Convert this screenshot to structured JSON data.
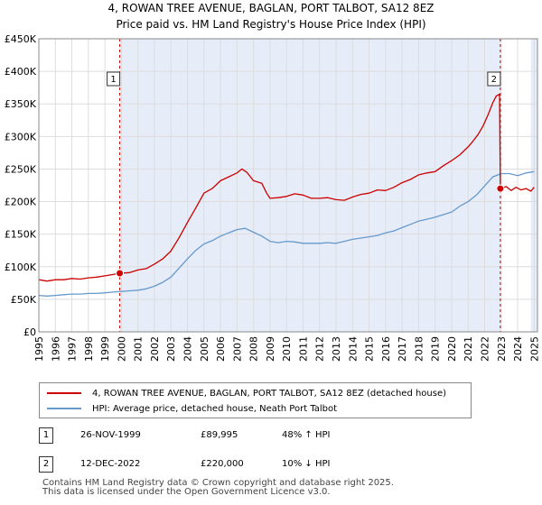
{
  "title": {
    "line1": "4, ROWAN TREE AVENUE, BAGLAN, PORT TALBOT, SA12 8EZ",
    "line2": "Price paid vs. HM Land Registry's House Price Index (HPI)"
  },
  "colors": {
    "property": "#cc0000",
    "hpi": "#6699cc",
    "shade": "#e6ecf8",
    "grid": "#dddddd",
    "marker_line": "#cc0000"
  },
  "chart_data": {
    "type": "line",
    "title": "Price paid vs. HM Land Registry's House Price Index (HPI)",
    "xlabel": "",
    "ylabel": "",
    "xlim": [
      1995.0,
      2025.2
    ],
    "ylim": [
      0,
      450000
    ],
    "grid": true,
    "y_ticks": [
      {
        "value": 0,
        "label": "£0"
      },
      {
        "value": 50000,
        "label": "£50K"
      },
      {
        "value": 100000,
        "label": "£100K"
      },
      {
        "value": 150000,
        "label": "£150K"
      },
      {
        "value": 200000,
        "label": "£200K"
      },
      {
        "value": 250000,
        "label": "£250K"
      },
      {
        "value": 300000,
        "label": "£300K"
      },
      {
        "value": 350000,
        "label": "£350K"
      },
      {
        "value": 400000,
        "label": "£400K"
      },
      {
        "value": 450000,
        "label": "£450K"
      }
    ],
    "x_ticks": [
      "1995",
      "1996",
      "1997",
      "1998",
      "1999",
      "2000",
      "2001",
      "2002",
      "2003",
      "2004",
      "2005",
      "2006",
      "2007",
      "2008",
      "2009",
      "2010",
      "2011",
      "2012",
      "2013",
      "2014",
      "2015",
      "2016",
      "2017",
      "2018",
      "2019",
      "2020",
      "2021",
      "2022",
      "2023",
      "2024",
      "2025"
    ],
    "series": [
      {
        "name": "4, ROWAN TREE AVENUE, BAGLAN, PORT TALBOT, SA12 8EZ (detached house)",
        "color": "#cc0000",
        "x": [
          1995.0,
          1995.5,
          1996.0,
          1996.5,
          1997.0,
          1997.5,
          1998.0,
          1998.5,
          1999.0,
          1999.5,
          1999.9,
          2000.5,
          2001.0,
          2001.5,
          2002.0,
          2002.5,
          2003.0,
          2003.5,
          2004.0,
          2004.5,
          2005.0,
          2005.5,
          2006.0,
          2006.5,
          2007.0,
          2007.3,
          2007.6,
          2008.0,
          2008.5,
          2008.8,
          2009.0,
          2009.5,
          2010.0,
          2010.5,
          2011.0,
          2011.5,
          2012.0,
          2012.5,
          2013.0,
          2013.5,
          2014.0,
          2014.5,
          2015.0,
          2015.5,
          2016.0,
          2016.5,
          2017.0,
          2017.5,
          2018.0,
          2018.5,
          2019.0,
          2019.5,
          2020.0,
          2020.5,
          2021.0,
          2021.3,
          2021.6,
          2021.9,
          2022.2,
          2022.5,
          2022.7,
          2022.9,
          2022.95,
          2023.3,
          2023.6,
          2023.9,
          2024.2,
          2024.5,
          2024.8,
          2025.0
        ],
        "values": [
          80000,
          78000,
          80000,
          80000,
          82000,
          81000,
          83000,
          84000,
          86000,
          88000,
          89995,
          91000,
          95000,
          97000,
          104000,
          112000,
          124000,
          145000,
          168000,
          190000,
          213000,
          220000,
          232000,
          238000,
          244000,
          250000,
          245000,
          232000,
          228000,
          213000,
          205000,
          206000,
          208000,
          212000,
          210000,
          205000,
          205000,
          206000,
          203000,
          202000,
          207000,
          211000,
          213000,
          218000,
          217000,
          222000,
          229000,
          234000,
          241000,
          244000,
          246000,
          255000,
          263000,
          272000,
          284000,
          293000,
          303000,
          316000,
          333000,
          352000,
          362000,
          365000,
          220000,
          223000,
          217000,
          222000,
          218000,
          220000,
          216000,
          222000
        ]
      },
      {
        "name": "HPI: Average price, detached house, Neath Port Talbot",
        "color": "#6699cc",
        "x": [
          1995.0,
          1995.5,
          1996.0,
          1996.5,
          1997.0,
          1997.5,
          1998.0,
          1998.5,
          1999.0,
          1999.5,
          2000.0,
          2000.5,
          2001.0,
          2001.5,
          2002.0,
          2002.5,
          2003.0,
          2003.5,
          2004.0,
          2004.5,
          2005.0,
          2005.5,
          2006.0,
          2006.5,
          2007.0,
          2007.5,
          2008.0,
          2008.5,
          2009.0,
          2009.5,
          2010.0,
          2010.5,
          2011.0,
          2011.5,
          2012.0,
          2012.5,
          2013.0,
          2013.5,
          2014.0,
          2014.5,
          2015.0,
          2015.5,
          2016.0,
          2016.5,
          2017.0,
          2017.5,
          2018.0,
          2018.5,
          2019.0,
          2019.5,
          2020.0,
          2020.5,
          2021.0,
          2021.5,
          2022.0,
          2022.5,
          2023.0,
          2023.5,
          2024.0,
          2024.5,
          2025.0
        ],
        "values": [
          56000,
          55000,
          56000,
          57000,
          58000,
          58000,
          59000,
          59000,
          60000,
          61000,
          62000,
          63000,
          64000,
          66000,
          70000,
          76000,
          84000,
          98000,
          112000,
          125000,
          135000,
          140000,
          147000,
          152000,
          157000,
          159000,
          153000,
          147000,
          139000,
          137000,
          139000,
          138000,
          136000,
          136000,
          136000,
          137000,
          136000,
          139000,
          142000,
          144000,
          146000,
          148000,
          152000,
          155000,
          160000,
          165000,
          170000,
          173000,
          176000,
          180000,
          184000,
          193000,
          200000,
          210000,
          224000,
          238000,
          243000,
          243000,
          240000,
          244000,
          246000
        ]
      }
    ],
    "transactions": [
      {
        "num": "1",
        "x": 1999.9,
        "value": 89995
      },
      {
        "num": "2",
        "x": 2022.95,
        "value": 220000
      }
    ],
    "shaded_ranges": [
      [
        1999.9,
        2022.95
      ],
      [
        2024.8,
        2025.2
      ]
    ]
  },
  "legend": {
    "items": [
      {
        "label": "4, ROWAN TREE AVENUE, BAGLAN, PORT TALBOT, SA12 8EZ (detached house)",
        "color": "#cc0000"
      },
      {
        "label": "HPI: Average price, detached house, Neath Port Talbot",
        "color": "#6699cc"
      }
    ]
  },
  "transactions_table": [
    {
      "num": "1",
      "date": "26-NOV-1999",
      "price": "£89,995",
      "hpi": "48% ↑ HPI"
    },
    {
      "num": "2",
      "date": "12-DEC-2022",
      "price": "£220,000",
      "hpi": "10% ↓ HPI"
    }
  ],
  "footer": {
    "line1": "Contains HM Land Registry data © Crown copyright and database right 2025.",
    "line2": "This data is licensed under the Open Government Licence v3.0."
  }
}
